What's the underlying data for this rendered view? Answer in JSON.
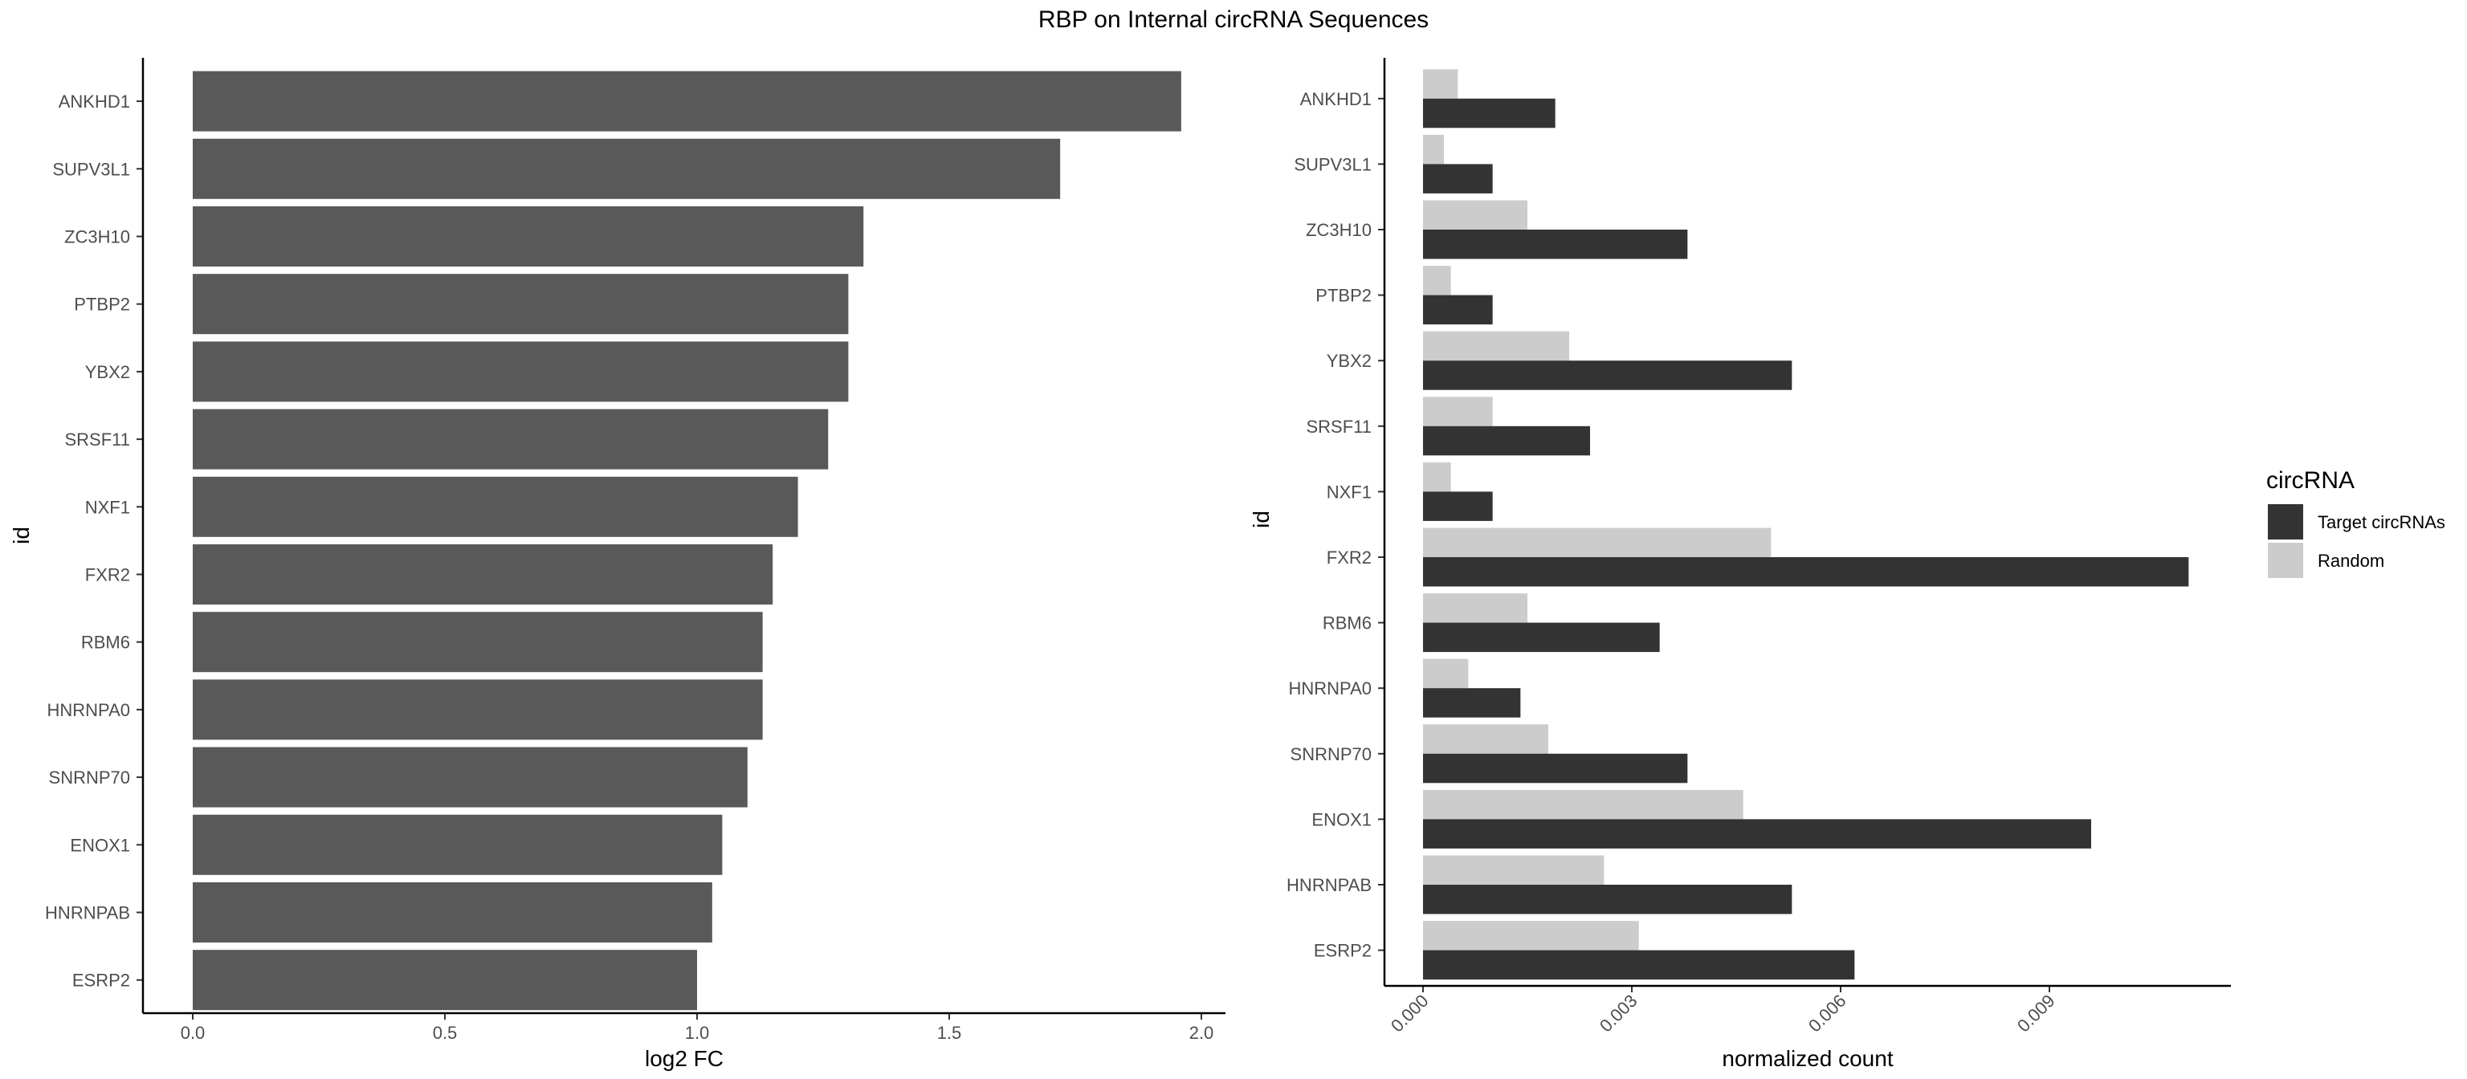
{
  "title": "RBP on Internal circRNA Sequences",
  "colors": {
    "fc_bar": "#595959",
    "target": "#333333",
    "random": "#cccccc",
    "axis": "#000000",
    "tick_label": "#4d4d4d"
  },
  "chart_data": [
    {
      "type": "bar",
      "orientation": "horizontal",
      "title": "",
      "xlabel": "log2 FC",
      "ylabel": "id",
      "xlim": [
        0,
        2.03
      ],
      "x_ticks": [
        "0.0",
        "0.5",
        "1.0",
        "1.5",
        "2.0"
      ],
      "categories": [
        "ANKHD1",
        "SUPV3L1",
        "ZC3H10",
        "PTBP2",
        "YBX2",
        "SRSF11",
        "NXF1",
        "FXR2",
        "RBM6",
        "HNRNPA0",
        "SNRNP70",
        "ENOX1",
        "HNRNPAB",
        "ESRP2"
      ],
      "values": [
        1.96,
        1.72,
        1.33,
        1.3,
        1.3,
        1.26,
        1.2,
        1.15,
        1.13,
        1.13,
        1.1,
        1.05,
        1.03,
        1.0
      ],
      "grid": false
    },
    {
      "type": "bar",
      "orientation": "horizontal",
      "title": "",
      "xlabel": "normalized count",
      "ylabel": "id",
      "xlim": [
        -0.0006,
        0.0117
      ],
      "x_ticks": [
        "0.000",
        "0.003",
        "0.006",
        "0.009"
      ],
      "categories": [
        "ANKHD1",
        "SUPV3L1",
        "ZC3H10",
        "PTBP2",
        "YBX2",
        "SRSF11",
        "NXF1",
        "FXR2",
        "RBM6",
        "HNRNPA0",
        "SNRNP70",
        "ENOX1",
        "HNRNPAB",
        "ESRP2"
      ],
      "series": [
        {
          "name": "Target circRNAs",
          "values": [
            0.0019,
            0.001,
            0.0038,
            0.001,
            0.0053,
            0.0024,
            0.001,
            0.011,
            0.0034,
            0.0014,
            0.0038,
            0.0096,
            0.0053,
            0.0062
          ]
        },
        {
          "name": "Random",
          "values": [
            0.0005,
            0.0003,
            0.0015,
            0.0004,
            0.0021,
            0.001,
            0.0004,
            0.005,
            0.0015,
            0.00065,
            0.0018,
            0.0046,
            0.0026,
            0.0031
          ]
        }
      ],
      "legend": {
        "title": "circRNA",
        "position": "right"
      },
      "grid": false
    }
  ]
}
